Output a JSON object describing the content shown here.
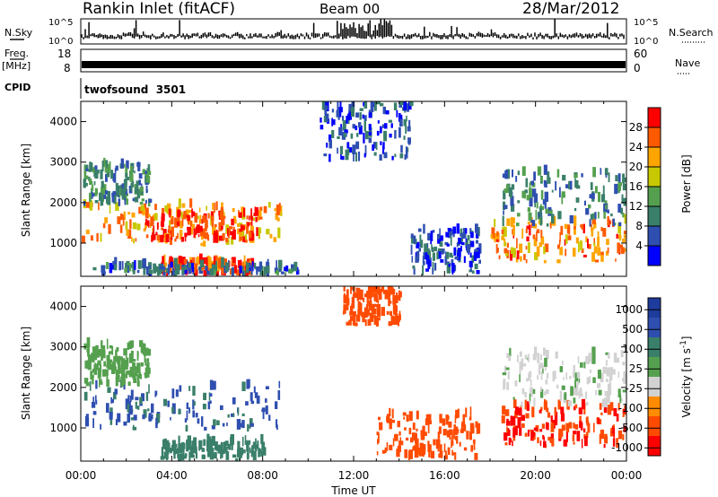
{
  "header": {
    "site": "Rankin Inlet (fitACF)",
    "beam": "Beam 00",
    "date": "28/Mar/2012"
  },
  "nsky_panel": {
    "label": "N.Sky",
    "left_ticks": [
      "10^5",
      "10^0"
    ],
    "right_ticks": [
      "10^5",
      "10^0"
    ],
    "right_label": "N.Search"
  },
  "freq_panel": {
    "label_top": "Freq.",
    "label_bottom": "[MHz]",
    "left_ticks": [
      "18",
      "8"
    ],
    "right_ticks": [
      "60",
      "0"
    ],
    "right_label": "Nave"
  },
  "cpid_panel": {
    "label": "CPID",
    "text": "twofsound  3501"
  },
  "colors": {
    "power": [
      "#0000ff",
      "#2f4fb0",
      "#3a7f6a",
      "#55a04f",
      "#c8c800",
      "#ffa500",
      "#ff5a00",
      "#ff0000"
    ],
    "velocity": [
      "#ff0000",
      "#ff4b00",
      "#ff8c00",
      "#d2d2d2",
      "#55a04f",
      "#3a7f6a",
      "#2f4fb0",
      "#1e3c9c"
    ]
  },
  "chart_data": [
    {
      "type": "heatmap",
      "title": "Power",
      "ylabel": "Slant Range [km]",
      "xlim": [
        0,
        24
      ],
      "ylim": [
        180,
        4500
      ],
      "y_ticks": [
        "1000",
        "2000",
        "3000",
        "4000"
      ],
      "colorbar_label": "Power [dB]",
      "colorbar_ticks": [
        "4",
        "8",
        "12",
        "16",
        "20",
        "24",
        "28"
      ],
      "colorbar_range": [
        0,
        32
      ],
      "echo_regions": [
        {
          "t0": 0.0,
          "t1": 8.8,
          "r0": 900,
          "r1": 1900,
          "level": 22
        },
        {
          "t0": 2.8,
          "t1": 7.8,
          "r0": 1000,
          "r1": 1700,
          "level": 28
        },
        {
          "t0": 0.1,
          "t1": 3.0,
          "r0": 1900,
          "r1": 2900,
          "level": 10
        },
        {
          "t0": 3.5,
          "t1": 7.5,
          "r0": 180,
          "r1": 500,
          "level": 26
        },
        {
          "t0": 0.5,
          "t1": 9.5,
          "r0": 180,
          "r1": 400,
          "level": 8
        },
        {
          "t0": 10.5,
          "t1": 14.5,
          "r0": 3000,
          "r1": 4500,
          "level": 6
        },
        {
          "t0": 14.5,
          "t1": 17.5,
          "r0": 200,
          "r1": 1300,
          "level": 6
        },
        {
          "t0": 18.0,
          "t1": 24.0,
          "r0": 500,
          "r1": 1500,
          "level": 24
        },
        {
          "t0": 18.5,
          "t1": 24.0,
          "r0": 1400,
          "r1": 2700,
          "level": 10
        }
      ]
    },
    {
      "type": "heatmap",
      "title": "Velocity",
      "ylabel": "Slant Range [km]",
      "xlabel": "Time UT",
      "x_ticks": [
        "00:00",
        "04:00",
        "08:00",
        "12:00",
        "16:00",
        "20:00",
        "00:00"
      ],
      "xlim": [
        0,
        24
      ],
      "ylim": [
        180,
        4500
      ],
      "y_ticks": [
        "1000",
        "2000",
        "3000",
        "4000"
      ],
      "colorbar_label": "Velocity [m s^-1]",
      "colorbar_ticks": [
        "1000",
        "500",
        "100",
        "25",
        "-25",
        "-100",
        "-500",
        "-1000"
      ],
      "echo_regions": [
        {
          "t0": 0.0,
          "t1": 8.8,
          "r0": 900,
          "r1": 2000,
          "velocity": 600
        },
        {
          "t0": 0.1,
          "t1": 3.0,
          "r0": 2000,
          "r1": 3000,
          "velocity": 60
        },
        {
          "t0": 3.5,
          "t1": 8.0,
          "r0": 180,
          "r1": 600,
          "velocity": 200
        },
        {
          "t0": 11.5,
          "t1": 14.0,
          "r0": 3500,
          "r1": 4500,
          "velocity": -300
        },
        {
          "t0": 13.0,
          "t1": 17.5,
          "r0": 200,
          "r1": 1300,
          "velocity": -200
        },
        {
          "t0": 18.5,
          "t1": 24.0,
          "r0": 500,
          "r1": 1500,
          "velocity": -500
        },
        {
          "t0": 18.5,
          "t1": 24.0,
          "r0": 1500,
          "r1": 2800,
          "velocity": 20
        }
      ]
    }
  ]
}
